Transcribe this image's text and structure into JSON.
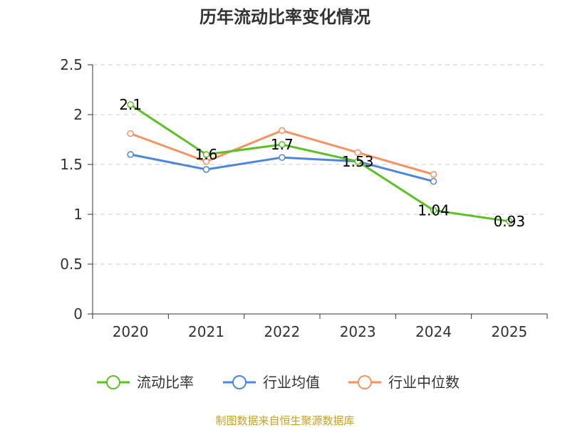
{
  "chart_data": {
    "type": "line",
    "title": "历年流动比率变化情况",
    "categories": [
      "2020",
      "2021",
      "2022",
      "2023",
      "2024",
      "2025"
    ],
    "ylim": [
      0,
      2.5
    ],
    "yticks": [
      "0",
      "0.5",
      "1",
      "1.5",
      "2",
      "2.5"
    ],
    "ytick_values": [
      0,
      0.5,
      1,
      1.5,
      2,
      2.5
    ],
    "grid": true,
    "legend_position": "bottom",
    "series": [
      {
        "name": "流动比率",
        "color": "#5cc125",
        "values": [
          2.1,
          1.6,
          1.7,
          1.53,
          1.04,
          0.93
        ],
        "labels": [
          "2.1",
          "1.6",
          "1.7",
          "1.53",
          "1.04",
          "0.93"
        ]
      },
      {
        "name": "行业均值",
        "color": "#4f86dc",
        "values": [
          1.6,
          1.45,
          1.57,
          1.53,
          1.33,
          null
        ]
      },
      {
        "name": "行业中位数",
        "color": "#f59462",
        "values": [
          1.81,
          1.53,
          1.84,
          1.62,
          1.4,
          null
        ]
      }
    ]
  },
  "source": "制图数据来自恒生聚源数据库"
}
